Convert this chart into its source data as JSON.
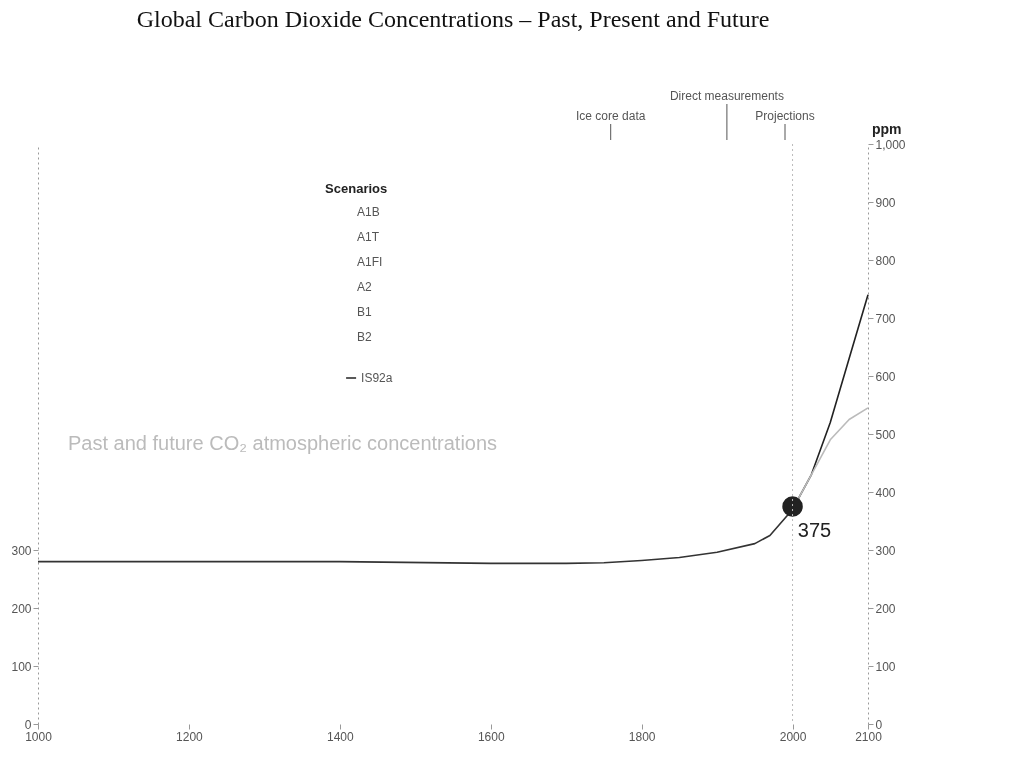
{
  "chart_data": {
    "type": "line",
    "title": "Global Carbon Dioxide Concentrations – Past, Present and Future",
    "y2label": "ppm",
    "legend_title": "Scenarios",
    "annotations": [
      "A1B",
      "A1T",
      "A1FI",
      "A2",
      "B1",
      "B2",
      "Ice core data",
      "Direct measurements",
      "Projections",
      "Past and future CO₂ atmospheric concentrations"
    ],
    "xlim": [
      1000,
      2100
    ],
    "xticks": [
      1000,
      1200,
      1400,
      1600,
      1800,
      2000,
      2100
    ],
    "ylim": [
      0,
      1000
    ],
    "yticks": [
      0,
      100,
      200,
      300
    ],
    "y2lim": [
      0,
      1000
    ],
    "y2ticks": [
      0,
      100,
      200,
      300,
      400,
      500,
      600,
      700,
      800,
      900,
      {
        "value": 1000,
        "label": "1,000"
      }
    ],
    "ref_lines": [
      {
        "axis": "x",
        "value": 2000,
        "color": "#bbbbbb",
        "line_style": "dotted"
      }
    ],
    "grid": false,
    "legend": "top",
    "series": [
      {
        "color": "#333333",
        "x": [
          1000,
          1200,
          1400,
          1600,
          1700,
          1750,
          1800,
          1850,
          1900,
          1950,
          1970,
          2000
        ],
        "values": [
          280,
          280,
          280,
          277,
          277,
          278,
          282,
          287,
          296,
          311,
          325,
          370
        ]
      },
      {
        "name": "IS92a",
        "color": "#222222",
        "x": [
          2000,
          2025,
          2050,
          2075,
          2100
        ],
        "values": [
          370,
          430,
          520,
          630,
          740
        ]
      },
      {
        "color": "#bbbbbb",
        "x": [
          2000,
          2050,
          2075,
          2100
        ],
        "values": [
          370,
          490,
          525,
          545
        ]
      },
      {
        "type": "scatter",
        "color": "#222222",
        "marker": "circle",
        "x": [
          2000
        ],
        "values": [
          375
        ],
        "value_labels": [
          "375"
        ]
      }
    ]
  }
}
